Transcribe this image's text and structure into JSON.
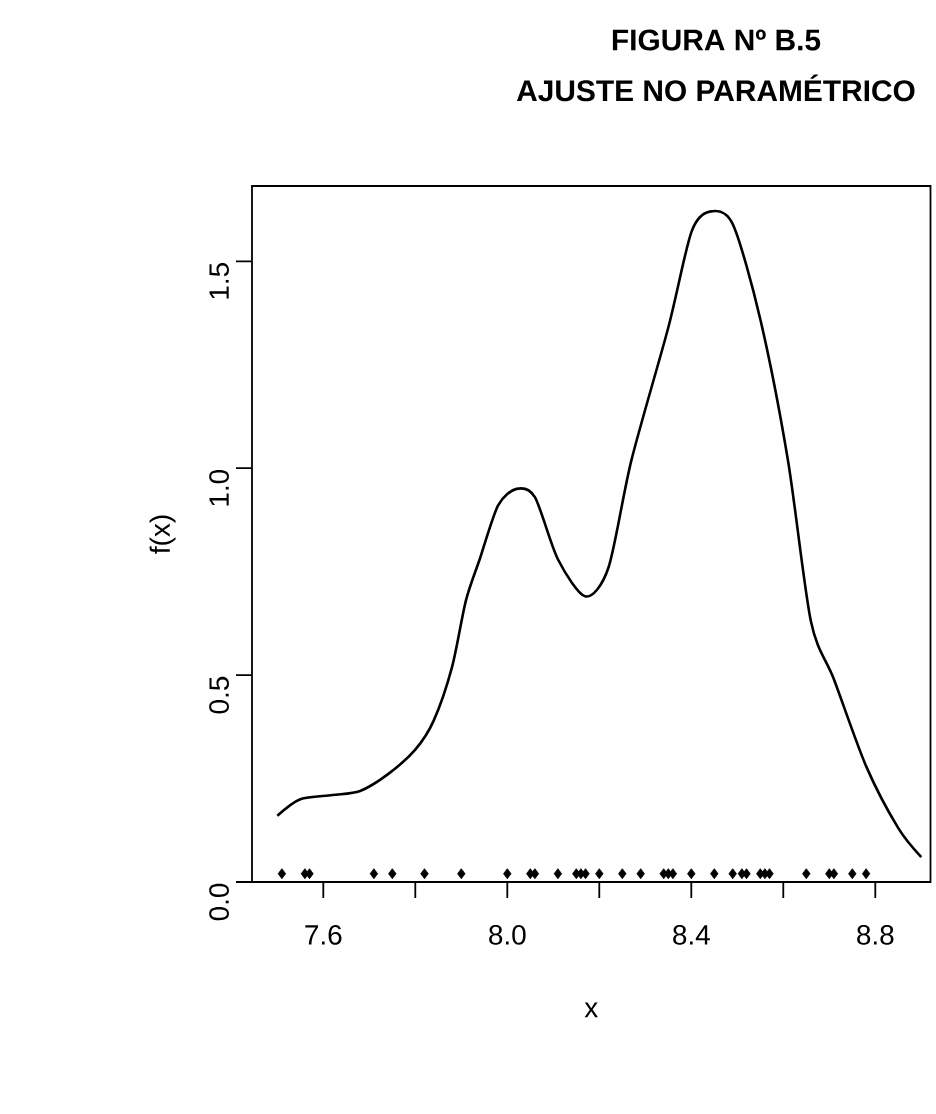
{
  "chart_data": {
    "type": "line",
    "title": "FIGURA Nº B.5",
    "subtitle": "AJUSTE NO PARAMÉTRICO",
    "xlabel": "x",
    "ylabel": "f(x)",
    "xlim": [
      7.445,
      8.92
    ],
    "ylim": [
      0,
      1.682
    ],
    "xticks": [
      7.6,
      {
        "value": 7.8,
        "label": null
      },
      {
        "value": 8,
        "label": "8.0"
      },
      {
        "value": 8.2,
        "label": null
      },
      8.4,
      {
        "value": 8.6,
        "label": null
      },
      8.8
    ],
    "yticks": [
      {
        "value": 0,
        "label": "0.0"
      },
      0.5,
      {
        "value": 1,
        "label": "1.0"
      },
      1.5
    ],
    "series": [
      {
        "color": "#000000",
        "x": [
          7.5,
          7.55,
          7.62,
          7.68,
          7.74,
          7.8,
          7.84,
          7.88,
          7.91,
          7.94,
          7.98,
          8.02,
          8.06,
          8.11,
          8.17,
          8.22,
          8.27,
          8.35,
          8.4,
          8.44,
          8.49,
          8.55,
          8.61,
          8.66,
          8.71,
          8.78,
          8.85,
          8.9
        ],
        "values": [
          0.16,
          0.2,
          0.21,
          0.22,
          0.26,
          0.32,
          0.39,
          0.52,
          0.68,
          0.78,
          0.91,
          0.95,
          0.93,
          0.78,
          0.69,
          0.76,
          1.02,
          1.34,
          1.57,
          1.62,
          1.59,
          1.36,
          1.02,
          0.63,
          0.49,
          0.28,
          0.13,
          0.06
        ]
      },
      {
        "type": "scatter",
        "marker": "diamond",
        "color": "#000000",
        "x": [
          7.51,
          7.56,
          7.57,
          7.71,
          7.75,
          7.82,
          7.9,
          8.0,
          8.05,
          8.06,
          8.11,
          8.15,
          8.16,
          8.17,
          8.2,
          8.25,
          8.29,
          8.34,
          8.35,
          8.36,
          8.4,
          8.45,
          8.49,
          8.51,
          8.52,
          8.55,
          8.56,
          8.57,
          8.65,
          8.7,
          8.71,
          8.75,
          8.78
        ],
        "values": [
          0.02,
          0.02,
          0.02,
          0.02,
          0.02,
          0.02,
          0.02,
          0.02,
          0.02,
          0.02,
          0.02,
          0.02,
          0.02,
          0.02,
          0.02,
          0.02,
          0.02,
          0.02,
          0.02,
          0.02,
          0.02,
          0.02,
          0.02,
          0.02,
          0.02,
          0.02,
          0.02,
          0.02,
          0.02,
          0.02,
          0.02,
          0.02,
          0.02
        ]
      }
    ]
  }
}
